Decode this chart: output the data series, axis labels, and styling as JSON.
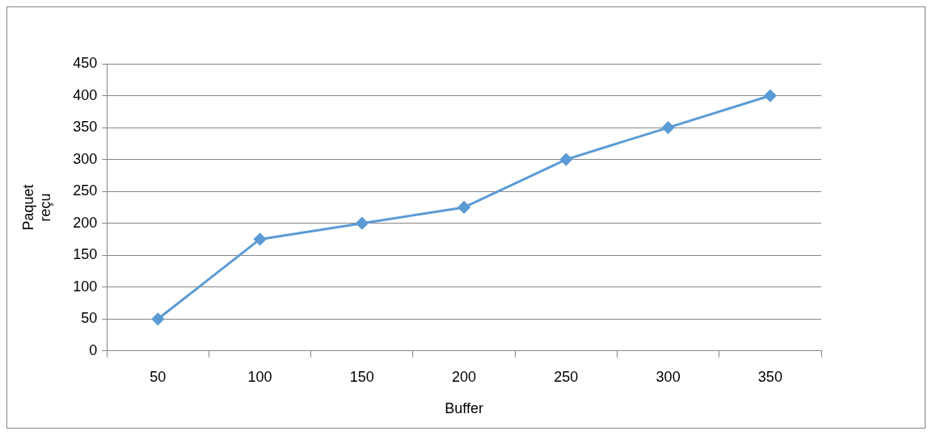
{
  "chart_data": {
    "type": "line",
    "xlabel": "Buffer",
    "ylabel": "Paquet reçu",
    "categories": [
      "50",
      "100",
      "150",
      "200",
      "250",
      "300",
      "350"
    ],
    "series": [
      {
        "color": "#5b9bd5",
        "values": [
          50,
          175,
          200,
          225,
          300,
          350,
          400
        ]
      }
    ],
    "ylim": [
      0,
      450
    ],
    "yticks": [
      0,
      50,
      100,
      150,
      200,
      250,
      300,
      350,
      400,
      450
    ],
    "grid": "y",
    "legend": false,
    "marker": "diamond",
    "line_style": "solid"
  }
}
